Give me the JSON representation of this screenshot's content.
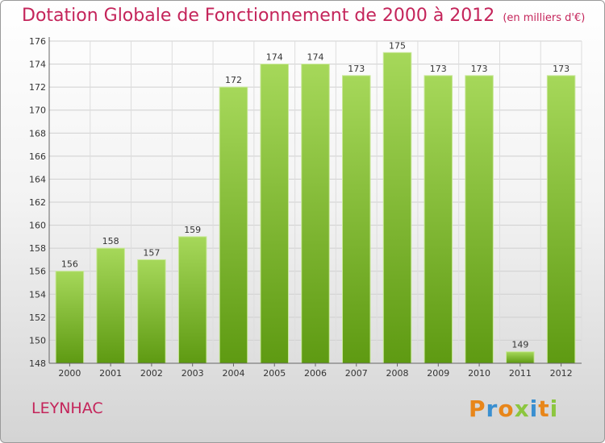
{
  "header": {
    "title": "Dotation Globale de Fonctionnement de 2000 à 2012",
    "unit": "(en milliers d'€)"
  },
  "footer": {
    "city": "LEYNHAC",
    "logo": "Proxiti"
  },
  "colors": {
    "title": "#c4245a",
    "bar_top": "#a6d85a",
    "bar_bottom": "#5e9a12",
    "logo_letters": [
      "#e8861a",
      "#3a8fd0",
      "#e8861a",
      "#8cc63f",
      "#3a8fd0",
      "#e8861a",
      "#8cc63f"
    ]
  },
  "chart_data": {
    "type": "bar",
    "categories": [
      "2000",
      "2001",
      "2002",
      "2003",
      "2004",
      "2005",
      "2006",
      "2007",
      "2008",
      "2009",
      "2010",
      "2011",
      "2012"
    ],
    "values": [
      156,
      158,
      157,
      159,
      172,
      174,
      174,
      173,
      175,
      173,
      173,
      149,
      173
    ],
    "title": "Dotation Globale de Fonctionnement de 2000 à 2012",
    "xlabel": "",
    "ylabel": "",
    "ylim": [
      148,
      176
    ],
    "yticks": [
      148,
      150,
      152,
      154,
      156,
      158,
      160,
      162,
      164,
      166,
      168,
      170,
      172,
      174,
      176
    ],
    "grid": true,
    "legend": "none"
  }
}
